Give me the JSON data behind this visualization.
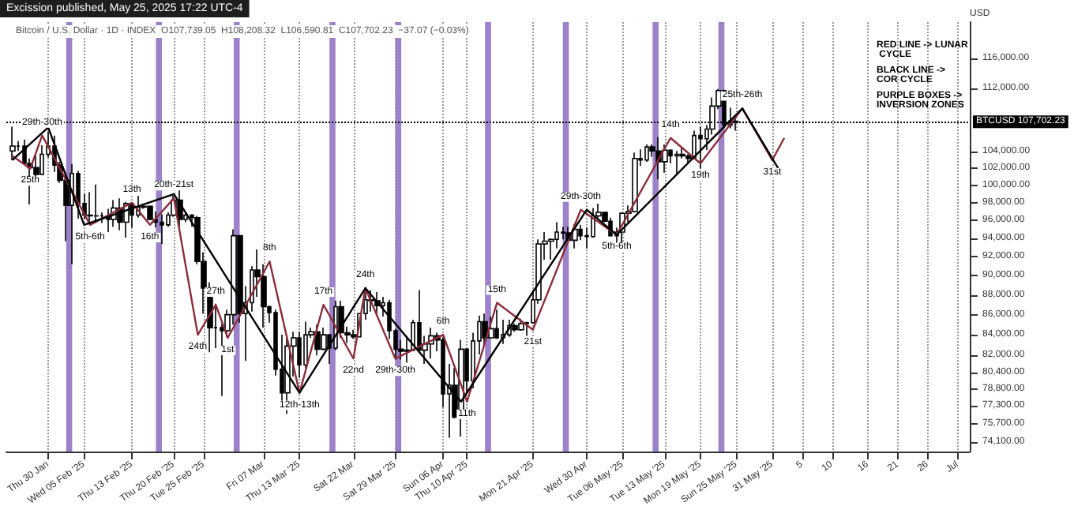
{
  "chart_data": {
    "type": "candlestick",
    "title": "Excission published, May 25, 2025 17:22 UTC-4",
    "ylabel": "USD",
    "annotations": [
      "Bitcoin / U.S. Dollar · 1D · INDEX  O107,739.05  H108,208.32  L106,590.81  C107,702.23  −37.07 (−0.03%)",
      "RED LINE -> LUNAR CYCLE",
      "BLACK LINE -> COR CYCLE",
      "PURPLE BOXES -> INVERSION ZONES",
      {
        "text": "29th-30th",
        "x": "2025-01-29",
        "y": 106000
      },
      {
        "text": "25th",
        "x": "2025-01-27",
        "y": 102000
      },
      {
        "text": "5th-6th",
        "x": "2025-02-06",
        "y": 95500
      },
      {
        "text": "13th",
        "x": "2025-02-13",
        "y": 98000
      },
      {
        "text": "16th",
        "x": "2025-02-16",
        "y": 95500
      },
      {
        "text": "20th-21st",
        "x": "2025-02-20",
        "y": 98500
      },
      {
        "text": "24th",
        "x": "2025-02-24",
        "y": 84000
      },
      {
        "text": "27th",
        "x": "2025-02-27",
        "y": 87000
      },
      {
        "text": "1st",
        "x": "2025-03-01",
        "y": 83700
      },
      {
        "text": "8th",
        "x": "2025-03-08",
        "y": 91500
      },
      {
        "text": "12th-13th",
        "x": "2025-03-13",
        "y": 78500
      },
      {
        "text": "17th",
        "x": "2025-03-17",
        "y": 87000
      },
      {
        "text": "22nd",
        "x": "2025-03-22",
        "y": 81700
      },
      {
        "text": "24th",
        "x": "2025-03-24",
        "y": 88700
      },
      {
        "text": "29th-30th",
        "x": "2025-03-29",
        "y": 81700
      },
      {
        "text": "6th",
        "x": "2025-04-06",
        "y": 84000
      },
      {
        "text": "11th",
        "x": "2025-04-10",
        "y": 77700
      },
      {
        "text": "15th",
        "x": "2025-04-15",
        "y": 87200
      },
      {
        "text": "21st",
        "x": "2025-04-21",
        "y": 84500
      },
      {
        "text": "29th-30th",
        "x": "2025-04-29",
        "y": 97200
      },
      {
        "text": "5th-6th",
        "x": "2025-05-05",
        "y": 94400
      },
      {
        "text": "14th",
        "x": "2025-05-14",
        "y": 105700
      },
      {
        "text": "19th",
        "x": "2025-05-19",
        "y": 102600
      },
      {
        "text": "25th-26th",
        "x": "2025-05-26",
        "y": 109400
      },
      {
        "text": "31st",
        "x": "2025-05-31",
        "y": 103000
      }
    ],
    "xlim": [
      "2025-01-23",
      "2025-07-03"
    ],
    "xticks": [
      {
        "value": "2025-01-30",
        "label": "Thu 30 Jan"
      },
      {
        "value": "2025-02-05",
        "label": "Wed 05 Feb '25"
      },
      {
        "value": "2025-02-13",
        "label": "Thu 13 Feb '25"
      },
      {
        "value": "2025-02-20",
        "label": "Thu 20 Feb '25"
      },
      {
        "value": "2025-02-25",
        "label": "Tue 25 Feb '25"
      },
      {
        "value": "2025-03-07",
        "label": "Fri 07 Mar"
      },
      {
        "value": "2025-03-13",
        "label": "Thu 13 Mar '25"
      },
      {
        "value": "2025-03-22",
        "label": "Sat 22 Mar"
      },
      {
        "value": "2025-03-29",
        "label": "Sat 29 Mar '25"
      },
      {
        "value": "2025-04-06",
        "label": "Sun 06 Apr"
      },
      {
        "value": "2025-04-10",
        "label": "Thu 10 Apr '25"
      },
      {
        "value": "2025-04-21",
        "label": "Mon 21 Apr '25"
      },
      {
        "value": "2025-04-30",
        "label": "Wed 30 Apr"
      },
      {
        "value": "2025-05-06",
        "label": "Tue 06 May '25"
      },
      {
        "value": "2025-05-13",
        "label": "Tue 13 May '25"
      },
      {
        "value": "2025-05-19",
        "label": "Mon 19 May '25"
      },
      {
        "value": "2025-05-25",
        "label": "Sun 25 May '25"
      },
      {
        "value": "2025-05-31",
        "label": "31 May '25"
      },
      {
        "value": "2025-06-05",
        "label": "5"
      },
      {
        "value": "2025-06-10",
        "label": "10"
      },
      {
        "value": "2025-06-16",
        "label": "16"
      },
      {
        "value": "2025-06-21",
        "label": "21"
      },
      {
        "value": "2025-06-26",
        "label": "26"
      },
      {
        "value": "2025-07-01",
        "label": "Jul"
      }
    ],
    "ylim": [
      73300,
      121000
    ],
    "yticks": [
      {
        "value": 116000,
        "label": "116,000.00"
      },
      {
        "value": 112000,
        "label": "112,000.00"
      },
      {
        "value": 104000,
        "label": "104,000.00"
      },
      {
        "value": 102000,
        "label": "102,000.00"
      },
      {
        "value": 100000,
        "label": "100,000.00"
      },
      {
        "value": 98000,
        "label": "98,000.00"
      },
      {
        "value": 96000,
        "label": "96,000.00"
      },
      {
        "value": 94000,
        "label": "94,000.00"
      },
      {
        "value": 92000,
        "label": "92,000.00"
      },
      {
        "value": 90000,
        "label": "90,000.00"
      },
      {
        "value": 88000,
        "label": "88,000.00"
      },
      {
        "value": 86000,
        "label": "86,000.00"
      },
      {
        "value": 84000,
        "label": "84,000.00"
      },
      {
        "value": 82000,
        "label": "82,000.00"
      },
      {
        "value": 80400,
        "label": "80,400.00"
      },
      {
        "value": 78800,
        "label": "78,800.00"
      },
      {
        "value": 77300,
        "label": "77,300.00"
      },
      {
        "value": 75700,
        "label": "75,700.00"
      },
      {
        "value": 74100,
        "label": "74,100.00"
      }
    ],
    "log": true,
    "grid": "x",
    "ref_lines": [
      {
        "axis": "y",
        "value": 107702.23,
        "label": "BTCUSD 107,702.23",
        "color": "#000000",
        "line_style": "dotted"
      }
    ],
    "bands": [
      {
        "axis": "x",
        "from": "2025-02-02",
        "to": "2025-02-03",
        "color": "#9b82c9"
      },
      {
        "axis": "x",
        "from": "2025-02-17",
        "to": "2025-02-18",
        "color": "#9b82c9"
      },
      {
        "axis": "x",
        "from": "2025-03-02",
        "to": "2025-03-03",
        "color": "#9b82c9"
      },
      {
        "axis": "x",
        "from": "2025-03-18",
        "to": "2025-03-19",
        "color": "#9b82c9"
      },
      {
        "axis": "x",
        "from": "2025-03-29",
        "to": "2025-03-30",
        "color": "#9b82c9"
      },
      {
        "axis": "x",
        "from": "2025-04-13",
        "to": "2025-04-14",
        "color": "#9b82c9"
      },
      {
        "axis": "x",
        "from": "2025-04-26",
        "to": "2025-04-27",
        "color": "#9b82c9"
      },
      {
        "axis": "x",
        "from": "2025-05-11",
        "to": "2025-05-12",
        "color": "#9b82c9"
      },
      {
        "axis": "x",
        "from": "2025-05-22",
        "to": "2025-05-23",
        "color": "#9b82c9"
      }
    ],
    "series": [
      {
        "color": "#000000",
        "x": [
          "2025-01-24",
          "2025-01-25",
          "2025-01-26",
          "2025-01-27",
          "2025-01-28",
          "2025-01-29",
          "2025-01-30",
          "2025-01-31",
          "2025-02-01",
          "2025-02-02",
          "2025-02-03",
          "2025-02-04",
          "2025-02-05",
          "2025-02-06",
          "2025-02-07",
          "2025-02-08",
          "2025-02-09",
          "2025-02-10",
          "2025-02-11",
          "2025-02-12",
          "2025-02-13",
          "2025-02-14",
          "2025-02-15",
          "2025-02-16",
          "2025-02-17",
          "2025-02-18",
          "2025-02-19",
          "2025-02-20",
          "2025-02-21",
          "2025-02-22",
          "2025-02-23",
          "2025-02-24",
          "2025-02-25",
          "2025-02-26",
          "2025-02-27",
          "2025-02-28",
          "2025-03-01",
          "2025-03-02",
          "2025-03-03",
          "2025-03-04",
          "2025-03-05",
          "2025-03-06",
          "2025-03-07",
          "2025-03-08",
          "2025-03-09",
          "2025-03-10",
          "2025-03-11",
          "2025-03-12",
          "2025-03-13",
          "2025-03-14",
          "2025-03-15",
          "2025-03-16",
          "2025-03-17",
          "2025-03-18",
          "2025-03-19",
          "2025-03-20",
          "2025-03-21",
          "2025-03-22",
          "2025-03-23",
          "2025-03-24",
          "2025-03-25",
          "2025-03-26",
          "2025-03-27",
          "2025-03-28",
          "2025-03-29",
          "2025-03-30",
          "2025-03-31",
          "2025-04-01",
          "2025-04-02",
          "2025-04-03",
          "2025-04-04",
          "2025-04-05",
          "2025-04-06",
          "2025-04-07",
          "2025-04-08",
          "2025-04-09",
          "2025-04-10",
          "2025-04-11",
          "2025-04-12",
          "2025-04-13",
          "2025-04-14",
          "2025-04-15",
          "2025-04-16",
          "2025-04-17",
          "2025-04-18",
          "2025-04-19",
          "2025-04-20",
          "2025-04-21",
          "2025-04-22",
          "2025-04-23",
          "2025-04-24",
          "2025-04-25",
          "2025-04-26",
          "2025-04-27",
          "2025-04-28",
          "2025-04-29",
          "2025-04-30",
          "2025-05-01",
          "2025-05-02",
          "2025-05-03",
          "2025-05-04",
          "2025-05-05",
          "2025-05-06",
          "2025-05-07",
          "2025-05-08",
          "2025-05-09",
          "2025-05-10",
          "2025-05-11",
          "2025-05-12",
          "2025-05-13",
          "2025-05-14",
          "2025-05-15",
          "2025-05-16",
          "2025-05-17",
          "2025-05-18",
          "2025-05-19",
          "2025-05-20",
          "2025-05-21",
          "2025-05-22",
          "2025-05-23",
          "2025-05-24",
          "2025-05-25"
        ],
        "ohlc": [
          [
            104100,
            107100,
            103000,
            104700
          ],
          [
            104700,
            105300,
            104100,
            104700
          ],
          [
            104700,
            105500,
            102500,
            102600
          ],
          [
            102600,
            103200,
            97800,
            102100
          ],
          [
            102100,
            103800,
            100300,
            101300
          ],
          [
            101300,
            104800,
            101300,
            103700
          ],
          [
            103700,
            106500,
            103300,
            104700
          ],
          [
            104700,
            106000,
            101600,
            102400
          ],
          [
            102400,
            102800,
            100300,
            100600
          ],
          [
            100600,
            101500,
            93700,
            97700
          ],
          [
            97700,
            102500,
            91200,
            101400
          ],
          [
            101400,
            101700,
            96200,
            97900
          ],
          [
            97900,
            99000,
            96200,
            96600
          ],
          [
            96600,
            99200,
            95700,
            96500
          ],
          [
            96500,
            100100,
            95700,
            96500
          ],
          [
            96500,
            96900,
            95700,
            96500
          ],
          [
            96500,
            97300,
            94700,
            96100
          ],
          [
            96100,
            98300,
            95300,
            97400
          ],
          [
            97400,
            98500,
            94900,
            95800
          ],
          [
            95800,
            98100,
            94100,
            97900
          ],
          [
            97900,
            98000,
            95200,
            96600
          ],
          [
            96600,
            98800,
            96300,
            97500
          ],
          [
            97500,
            97900,
            97300,
            97600
          ],
          [
            97600,
            97700,
            96100,
            96100
          ],
          [
            96100,
            97000,
            95200,
            95800
          ],
          [
            95800,
            96700,
            93400,
            95500
          ],
          [
            95500,
            96900,
            95300,
            96600
          ],
          [
            96600,
            98800,
            96400,
            98300
          ],
          [
            98300,
            99500,
            94900,
            96100
          ],
          [
            96100,
            96900,
            95800,
            96600
          ],
          [
            96600,
            96700,
            95300,
            96300
          ],
          [
            96300,
            96500,
            91200,
            91500
          ],
          [
            91500,
            92500,
            86100,
            88700
          ],
          [
            88700,
            89300,
            82300,
            84700
          ],
          [
            84700,
            87100,
            82700,
            84700
          ],
          [
            84700,
            85100,
            78200,
            84400
          ],
          [
            84400,
            86500,
            83800,
            86000
          ],
          [
            86000,
            95000,
            85000,
            94300
          ],
          [
            94300,
            94400,
            85200,
            86100
          ],
          [
            86100,
            88900,
            81500,
            87200
          ],
          [
            87200,
            91000,
            86300,
            90600
          ],
          [
            90600,
            92800,
            87800,
            89900
          ],
          [
            89900,
            91200,
            84700,
            86800
          ],
          [
            86800,
            86900,
            85200,
            86200
          ],
          [
            86200,
            86500,
            80100,
            80700
          ],
          [
            80700,
            84000,
            77500,
            78500
          ],
          [
            78500,
            83600,
            76600,
            82900
          ],
          [
            82900,
            84300,
            80000,
            83700
          ],
          [
            83700,
            84300,
            79900,
            81100
          ],
          [
            81100,
            85300,
            80800,
            84000
          ],
          [
            84000,
            84700,
            83700,
            84300
          ],
          [
            84300,
            85000,
            82000,
            82600
          ],
          [
            82600,
            84700,
            82500,
            84000
          ],
          [
            84000,
            84000,
            81200,
            82700
          ],
          [
            82700,
            87400,
            82500,
            86800
          ],
          [
            86800,
            87400,
            83700,
            84200
          ],
          [
            84200,
            84800,
            83200,
            84000
          ],
          [
            84000,
            84500,
            83600,
            83800
          ],
          [
            83800,
            86100,
            83800,
            86100
          ],
          [
            86100,
            88800,
            85500,
            87500
          ],
          [
            87500,
            88500,
            86300,
            87400
          ],
          [
            87400,
            88300,
            85900,
            86900
          ],
          [
            86900,
            87800,
            85800,
            87200
          ],
          [
            87200,
            87500,
            83600,
            84400
          ],
          [
            84400,
            84600,
            81600,
            82600
          ],
          [
            82600,
            83500,
            81600,
            82400
          ],
          [
            82400,
            83900,
            81300,
            82500
          ],
          [
            82500,
            85500,
            82400,
            85200
          ],
          [
            85200,
            88500,
            82300,
            82500
          ],
          [
            82500,
            83900,
            81200,
            83100
          ],
          [
            83100,
            84700,
            81700,
            83900
          ],
          [
            83900,
            84200,
            82400,
            83500
          ],
          [
            83500,
            83800,
            77200,
            78400
          ],
          [
            78400,
            81200,
            74500,
            79200
          ],
          [
            79200,
            80800,
            76200,
            76300
          ],
          [
            76300,
            83500,
            74600,
            82600
          ],
          [
            82600,
            82700,
            78500,
            79600
          ],
          [
            79600,
            84200,
            78900,
            83400
          ],
          [
            83400,
            85900,
            82100,
            85300
          ],
          [
            85300,
            86100,
            83000,
            83700
          ],
          [
            83700,
            85800,
            83700,
            84600
          ],
          [
            84600,
            86500,
            83600,
            83700
          ],
          [
            83700,
            85500,
            83100,
            84000
          ],
          [
            84000,
            85500,
            83800,
            84900
          ],
          [
            84900,
            85100,
            84300,
            84500
          ],
          [
            84500,
            85600,
            84400,
            85100
          ],
          [
            85100,
            85300,
            83900,
            85200
          ],
          [
            85200,
            88500,
            85100,
            87500
          ],
          [
            87500,
            93900,
            87100,
            93400
          ],
          [
            93400,
            94700,
            91700,
            93700
          ],
          [
            93700,
            94000,
            91700,
            93900
          ],
          [
            93900,
            95800,
            92900,
            94700
          ],
          [
            94700,
            95300,
            93900,
            94600
          ],
          [
            94600,
            95300,
            93700,
            93800
          ],
          [
            93800,
            95600,
            92900,
            95000
          ],
          [
            95000,
            95500,
            93800,
            94300
          ],
          [
            94300,
            95200,
            92900,
            94200
          ],
          [
            94200,
            97400,
            94100,
            96500
          ],
          [
            96500,
            97900,
            96300,
            96900
          ],
          [
            96900,
            96900,
            95800,
            95900
          ],
          [
            95900,
            96300,
            94200,
            94300
          ],
          [
            94300,
            95200,
            93500,
            94700
          ],
          [
            94700,
            96900,
            93400,
            96800
          ],
          [
            96800,
            97700,
            95800,
            97000
          ],
          [
            97000,
            103900,
            96900,
            103200
          ],
          [
            103200,
            104300,
            102300,
            103000
          ],
          [
            103000,
            104900,
            102800,
            104600
          ],
          [
            104600,
            104900,
            103400,
            104100
          ],
          [
            104100,
            105800,
            100700,
            102800
          ],
          [
            102800,
            104900,
            101500,
            104200
          ],
          [
            104200,
            104300,
            102600,
            103500
          ],
          [
            103500,
            104100,
            101400,
            103700
          ],
          [
            103700,
            104500,
            103200,
            103500
          ],
          [
            103500,
            103700,
            102700,
            103200
          ],
          [
            103200,
            106600,
            103100,
            106000
          ],
          [
            106000,
            107100,
            102000,
            105600
          ],
          [
            105600,
            107300,
            104200,
            106800
          ],
          [
            106800,
            110800,
            106100,
            109700
          ],
          [
            109700,
            111900,
            109300,
            111700
          ],
          [
            111700,
            111800,
            106900,
            107300
          ],
          [
            107300,
            109500,
            106900,
            107800
          ],
          [
            107739.05,
            108208.32,
            106590.81,
            107702.23
          ]
        ]
      },
      {
        "type": "line",
        "color": "#8b2e3c",
        "x": [
          "2025-01-24",
          "2025-01-27",
          "2025-01-29",
          "2025-02-06",
          "2025-02-13",
          "2025-02-16",
          "2025-02-20",
          "2025-02-24",
          "2025-02-27",
          "2025-03-01",
          "2025-03-08",
          "2025-03-13",
          "2025-03-17",
          "2025-03-22",
          "2025-03-24",
          "2025-03-29",
          "2025-04-06",
          "2025-04-10",
          "2025-04-15",
          "2025-04-21",
          "2025-04-29",
          "2025-05-05",
          "2025-05-14",
          "2025-05-19",
          "2025-05-26",
          "2025-05-31",
          "2025-06-02"
        ],
        "values": [
          103500,
          102000,
          106000,
          95500,
          98000,
          95500,
          98500,
          84000,
          87000,
          83700,
          91500,
          78500,
          87000,
          81700,
          88700,
          81700,
          84000,
          77700,
          87200,
          84500,
          97200,
          94400,
          105700,
          102600,
          109400,
          103000,
          105700
        ]
      },
      {
        "type": "line",
        "color": "#000000",
        "x": [
          "2025-01-24",
          "2025-01-30",
          "2025-02-05",
          "2025-02-20",
          "2025-03-13",
          "2025-03-24",
          "2025-04-09",
          "2025-04-30",
          "2025-05-05",
          "2025-05-26",
          "2025-06-01"
        ],
        "values": [
          103000,
          107000,
          95500,
          99000,
          78500,
          88700,
          77700,
          97200,
          94400,
          109400,
          102000
        ]
      }
    ]
  }
}
